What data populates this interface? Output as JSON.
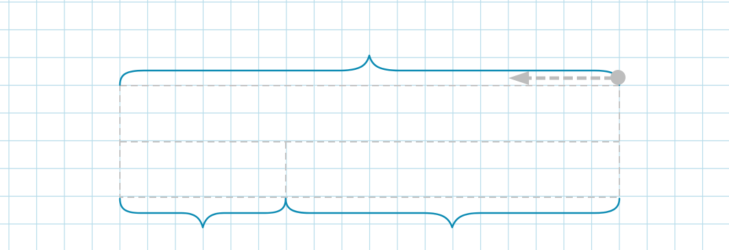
{
  "diagram": {
    "colors": {
      "background": "#ffffff",
      "grid": "#b7dcea",
      "brace": "#0c8bb3",
      "dashed_outline": "#c4c4c4",
      "arrow": "#bdbdbd"
    },
    "grid": {
      "columns": 26,
      "rows": 9
    },
    "rectangle": {
      "columns": 18,
      "rows": 4,
      "row_split_at": 2,
      "column_split_at": 6
    },
    "braces": [
      {
        "id": "top-brace",
        "spans_columns": 18,
        "side": "top"
      },
      {
        "id": "bottom-left-brace",
        "spans_columns": 6,
        "side": "bottom"
      },
      {
        "id": "bottom-right-brace",
        "spans_columns": 12,
        "side": "bottom"
      }
    ],
    "arrow": {
      "direction": "left",
      "style": "dashed",
      "start": "dot"
    }
  }
}
